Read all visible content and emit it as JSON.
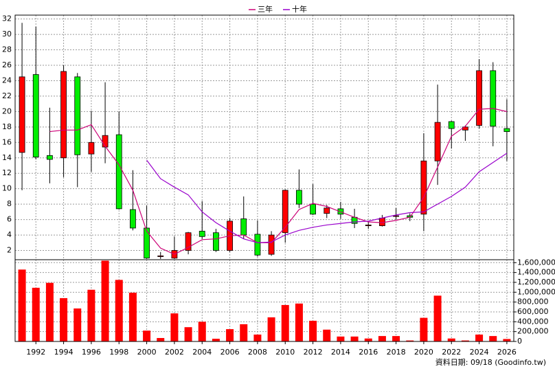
{
  "chart_data": [
    {
      "type": "candlestick",
      "x": [
        1991,
        1992,
        1993,
        1994,
        1995,
        1996,
        1997,
        1998,
        1999,
        2000,
        2001,
        2002,
        2003,
        2004,
        2005,
        2006,
        2007,
        2008,
        2009,
        2010,
        2011,
        2012,
        2013,
        2014,
        2015,
        2016,
        2017,
        2018,
        2019,
        2020,
        2021,
        2022,
        2023,
        2024,
        2025,
        2026
      ],
      "open": [
        14.7,
        24.8,
        14.3,
        14.0,
        24.5,
        14.5,
        15.4,
        17.0,
        7.3,
        4.9,
        1.2,
        1.0,
        2.0,
        4.5,
        4.3,
        2.0,
        6.1,
        4.1,
        1.5,
        4.3,
        9.8,
        8.0,
        6.8,
        7.4,
        6.3,
        5.2,
        5.2,
        6.4,
        6.5,
        6.7,
        13.6,
        18.7,
        17.6,
        18.2,
        25.3,
        17.8
      ],
      "high": [
        31.5,
        31.0,
        20.5,
        26.0,
        25.0,
        20.1,
        23.8,
        20.0,
        12.4,
        7.8,
        1.8,
        3.8,
        4.4,
        8.4,
        4.8,
        6.2,
        9.0,
        5.9,
        4.5,
        9.9,
        12.5,
        10.6,
        7.9,
        8.3,
        7.4,
        5.8,
        6.6,
        7.5,
        6.8,
        17.2,
        23.5,
        18.8,
        18.2,
        26.8,
        26.4,
        21.6
      ],
      "low": [
        9.8,
        13.8,
        10.7,
        11.5,
        10.2,
        12.2,
        13.3,
        7.3,
        4.6,
        0.9,
        0.9,
        0.9,
        1.5,
        3.5,
        1.8,
        1.8,
        3.5,
        1.2,
        1.3,
        3.0,
        7.5,
        6.6,
        6.2,
        6.1,
        4.9,
        4.8,
        5.1,
        6.0,
        5.8,
        4.5,
        10.5,
        15.2,
        16.2,
        17.8,
        15.5,
        13.6
      ],
      "close": [
        24.5,
        14.1,
        13.8,
        25.2,
        14.4,
        16.0,
        16.9,
        7.4,
        4.9,
        1.0,
        1.3,
        2.0,
        4.3,
        3.8,
        2.0,
        5.8,
        4.0,
        1.4,
        4.0,
        9.8,
        8.0,
        6.7,
        7.5,
        6.7,
        5.5,
        5.3,
        6.2,
        6.5,
        6.3,
        13.6,
        18.6,
        17.8,
        18.0,
        25.3,
        18.1,
        17.4
      ],
      "up_color": "#ff0000",
      "down_color": "#00ee00",
      "series": [
        {
          "name": "三年",
          "color": "#cc0077",
          "values": [
            null,
            null,
            17.4,
            17.6,
            17.6,
            18.3,
            15.5,
            13.1,
            9.8,
            4.5,
            2.3,
            1.5,
            2.4,
            3.4,
            3.5,
            3.9,
            4.0,
            3.0,
            3.0,
            5.0,
            7.3,
            8.1,
            7.7,
            7.0,
            6.3,
            5.7,
            5.6,
            5.9,
            6.3,
            8.9,
            12.8,
            16.8,
            18.1,
            20.3,
            20.4,
            20.0
          ]
        },
        {
          "name": "十年",
          "color": "#9900cc",
          "values": [
            null,
            null,
            null,
            null,
            null,
            null,
            null,
            null,
            null,
            13.7,
            11.3,
            10.2,
            9.2,
            7.0,
            5.6,
            4.5,
            3.5,
            3.0,
            3.1,
            4.0,
            4.6,
            5.0,
            5.3,
            5.5,
            5.7,
            5.8,
            6.2,
            6.6,
            6.9,
            7.0,
            8.0,
            9.0,
            10.2,
            12.2,
            13.4,
            14.6
          ]
        }
      ],
      "xlim": [
        1990.5,
        2026.5
      ],
      "ylim": [
        0.8,
        32.5
      ],
      "yticks": [
        2,
        4,
        6,
        8,
        10,
        12,
        14,
        16,
        18,
        20,
        22,
        24,
        26,
        28,
        30,
        32
      ],
      "grid": true
    },
    {
      "type": "bar",
      "x": [
        1991,
        1992,
        1993,
        1994,
        1995,
        1996,
        1997,
        1998,
        1999,
        2000,
        2001,
        2002,
        2003,
        2004,
        2005,
        2006,
        2007,
        2008,
        2009,
        2010,
        2011,
        2012,
        2013,
        2014,
        2015,
        2016,
        2017,
        2018,
        2019,
        2020,
        2021,
        2022,
        2023,
        2024,
        2025,
        2026
      ],
      "values": [
        1460000,
        1090000,
        1190000,
        880000,
        670000,
        1050000,
        1640000,
        1250000,
        990000,
        220000,
        70000,
        570000,
        290000,
        400000,
        55000,
        250000,
        350000,
        140000,
        490000,
        740000,
        770000,
        420000,
        240000,
        100000,
        100000,
        60000,
        110000,
        110000,
        20000,
        480000,
        930000,
        60000,
        20000,
        140000,
        110000,
        50000
      ],
      "color": "#ff0000",
      "xlim": [
        1990.5,
        2026.5
      ],
      "ylim": [
        0,
        1660000
      ],
      "xticks": [
        1992,
        1994,
        1996,
        1998,
        2000,
        2002,
        2004,
        2006,
        2008,
        2010,
        2012,
        2014,
        2016,
        2018,
        2020,
        2022,
        2024,
        2026
      ],
      "yticks": [
        0,
        {
          "value": 200000,
          "label": "200,000"
        },
        {
          "value": 400000,
          "label": "400,000"
        },
        {
          "value": 600000,
          "label": "600,000"
        },
        {
          "value": 800000,
          "label": "800,000"
        },
        {
          "value": 1000000,
          "label": "1,000,000"
        },
        {
          "value": 1200000,
          "label": "1,200,000"
        },
        {
          "value": 1400000,
          "label": "1,400,000"
        },
        {
          "value": 1600000,
          "label": "1,600,000"
        }
      ],
      "grid": true,
      "source": "資料日期: 09/18 (Goodinfo.tw)"
    }
  ]
}
